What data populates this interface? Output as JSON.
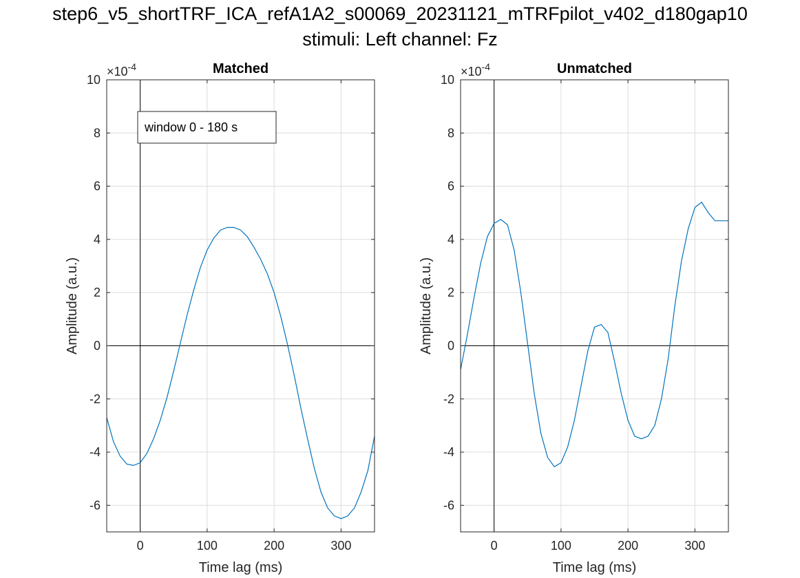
{
  "figure": {
    "title_line1": "step6_v5_shortTRF_ICA_refA1A2_s00069_20231121_mTRFpilot_v402_d180gap10",
    "title_line2": "stimuli: Left channel: Fz"
  },
  "chart_data": [
    {
      "type": "line",
      "title": "Matched",
      "xlabel": "Time lag (ms)",
      "ylabel": "Amplitude (a.u.)",
      "xlim": [
        -50,
        350
      ],
      "ylim": [
        -7,
        10
      ],
      "y_exponent_label": "×10^-4",
      "y_multiplier": "×10",
      "y_exponent": "-4",
      "xticks": [
        0,
        100,
        200,
        300
      ],
      "yticks": [
        -6,
        -4,
        -2,
        0,
        2,
        4,
        6,
        8,
        10
      ],
      "grid": true,
      "annotation": "window 0 - 180 s",
      "color": "#0072BD",
      "x": [
        -50,
        -40,
        -30,
        -20,
        -10,
        0,
        10,
        20,
        30,
        40,
        50,
        60,
        70,
        80,
        90,
        100,
        110,
        120,
        130,
        140,
        150,
        160,
        170,
        180,
        190,
        200,
        210,
        220,
        230,
        240,
        250,
        260,
        270,
        280,
        290,
        300,
        310,
        320,
        330,
        340,
        350
      ],
      "y": [
        -2.7,
        -3.6,
        -4.15,
        -4.45,
        -4.5,
        -4.4,
        -4.05,
        -3.5,
        -2.8,
        -1.95,
        -0.95,
        0.1,
        1.15,
        2.1,
        2.95,
        3.6,
        4.05,
        4.35,
        4.45,
        4.45,
        4.35,
        4.1,
        3.7,
        3.25,
        2.7,
        2.0,
        1.1,
        0.05,
        -1.1,
        -2.35,
        -3.5,
        -4.6,
        -5.5,
        -6.1,
        -6.4,
        -6.5,
        -6.4,
        -6.1,
        -5.5,
        -4.7,
        -3.4
      ]
    },
    {
      "type": "line",
      "title": "Unmatched",
      "xlabel": "Time lag (ms)",
      "ylabel": "Amplitude (a.u.)",
      "xlim": [
        -50,
        350
      ],
      "ylim": [
        -7,
        10
      ],
      "y_exponent_label": "×10^-4",
      "y_multiplier": "×10",
      "y_exponent": "-4",
      "xticks": [
        0,
        100,
        200,
        300
      ],
      "yticks": [
        -6,
        -4,
        -2,
        0,
        2,
        4,
        6,
        8,
        10
      ],
      "grid": true,
      "color": "#0072BD",
      "x": [
        -50,
        -40,
        -30,
        -20,
        -10,
        0,
        10,
        20,
        30,
        40,
        50,
        60,
        70,
        80,
        90,
        100,
        110,
        120,
        130,
        140,
        150,
        160,
        170,
        180,
        190,
        200,
        210,
        220,
        230,
        240,
        250,
        260,
        270,
        280,
        290,
        300,
        310,
        320,
        330,
        340,
        350
      ],
      "y": [
        -0.9,
        0.4,
        1.8,
        3.1,
        4.1,
        4.6,
        4.75,
        4.55,
        3.6,
        2.0,
        0.1,
        -1.8,
        -3.3,
        -4.2,
        -4.55,
        -4.4,
        -3.8,
        -2.8,
        -1.5,
        -0.2,
        0.7,
        0.8,
        0.5,
        -0.6,
        -1.8,
        -2.8,
        -3.4,
        -3.5,
        -3.4,
        -3.0,
        -2.0,
        -0.5,
        1.5,
        3.2,
        4.4,
        5.2,
        5.4,
        5.0,
        4.7,
        4.7,
        4.7
      ]
    }
  ]
}
